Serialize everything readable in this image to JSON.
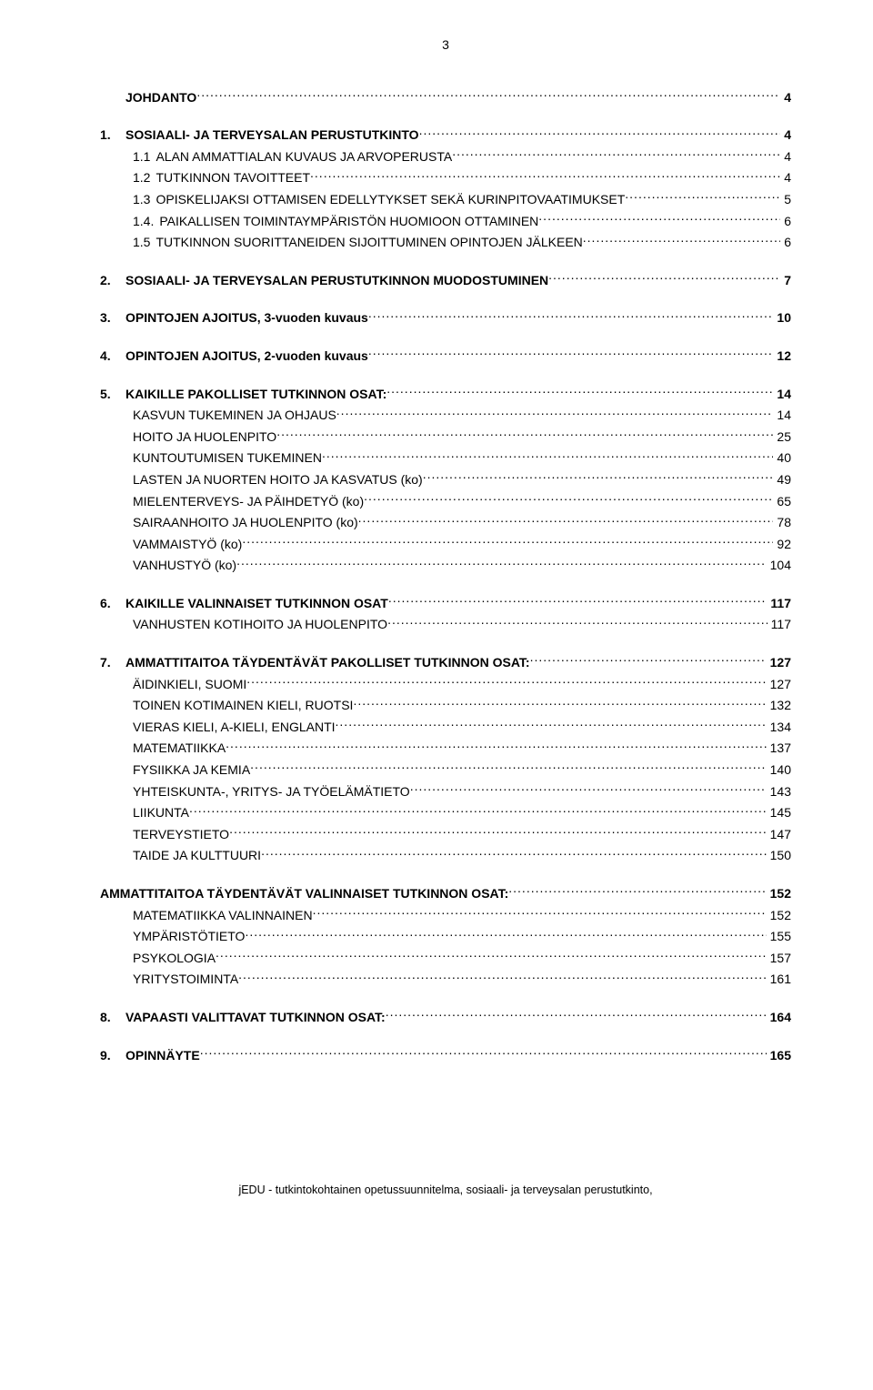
{
  "page_number": "3",
  "toc": [
    {
      "type": "top",
      "num": "",
      "label": "JOHDANTO",
      "page": "4",
      "bold": true,
      "group_after": true
    },
    {
      "type": "top",
      "num": "1.",
      "label": "SOSIAALI- JA TERVEYSALAN PERUSTUTKINTO",
      "page": "4",
      "bold": true
    },
    {
      "type": "sub",
      "num": "1.1",
      "label": "ALAN AMMATTIALAN KUVAUS JA ARVOPERUSTA",
      "page": "4"
    },
    {
      "type": "sub",
      "num": "1.2",
      "label": "TUTKINNON TAVOITTEET",
      "page": "4"
    },
    {
      "type": "sub",
      "num": "1.3",
      "label": "OPISKELIJAKSI OTTAMISEN EDELLYTYKSET SEKÄ KURINPITOVAATIMUKSET",
      "page": "5"
    },
    {
      "type": "sub",
      "num": "1.4.",
      "label": "PAIKALLISEN TOIMINTAYMPÄRISTÖN HUOMIOON OTTAMINEN",
      "page": "6"
    },
    {
      "type": "sub",
      "num": "1.5",
      "label": "TUTKINNON SUORITTANEIDEN SIJOITTUMINEN OPINTOJEN JÄLKEEN",
      "page": "6",
      "group_after": true
    },
    {
      "type": "top",
      "num": "2.",
      "label": "SOSIAALI- JA TERVEYSALAN PERUSTUTKINNON MUODOSTUMINEN",
      "page": "7",
      "bold": true,
      "group_after": true
    },
    {
      "type": "top",
      "num": "3.",
      "label": "OPINTOJEN AJOITUS, 3-vuoden kuvaus",
      "page": "10",
      "bold": true,
      "group_after": true
    },
    {
      "type": "top",
      "num": "4.",
      "label": "OPINTOJEN AJOITUS, 2-vuoden kuvaus",
      "page": "12",
      "bold": true,
      "group_after": true
    },
    {
      "type": "top",
      "num": "5.",
      "label": "KAIKILLE PAKOLLISET TUTKINNON OSAT:",
      "page": "14",
      "bold": true
    },
    {
      "type": "child",
      "label": "KASVUN TUKEMINEN JA OHJAUS",
      "page": "14"
    },
    {
      "type": "child",
      "label": "HOITO JA HUOLENPITO",
      "page": "25"
    },
    {
      "type": "child",
      "label": "KUNTOUTUMISEN TUKEMINEN",
      "page": "40"
    },
    {
      "type": "child",
      "label": "LASTEN JA NUORTEN HOITO JA KASVATUS (ko)",
      "page": "49"
    },
    {
      "type": "child",
      "label": "MIELENTERVEYS- JA PÄIHDETYÖ (ko)",
      "page": "65"
    },
    {
      "type": "child",
      "label": "SAIRAANHOITO JA HUOLENPITO (ko)",
      "page": "78"
    },
    {
      "type": "child",
      "label": "VAMMAISTYÖ (ko)",
      "page": "92"
    },
    {
      "type": "child",
      "label": "VANHUSTYÖ (ko)",
      "page": "104",
      "group_after": true
    },
    {
      "type": "top",
      "num": "6.",
      "label": "KAIKILLE VALINNAISET TUTKINNON OSAT",
      "page": "117",
      "bold": true
    },
    {
      "type": "child",
      "label": "VANHUSTEN KOTIHOITO JA HUOLENPITO",
      "page": "117",
      "group_after": true
    },
    {
      "type": "top",
      "num": "7.",
      "label": "AMMATTITAITOA TÄYDENTÄVÄT PAKOLLISET TUTKINNON OSAT:",
      "page": "127",
      "bold": true
    },
    {
      "type": "child",
      "label": "ÄIDINKIELI, SUOMI",
      "page": "127"
    },
    {
      "type": "child",
      "label": "TOINEN KOTIMAINEN KIELI, RUOTSI",
      "page": "132"
    },
    {
      "type": "child",
      "label": "VIERAS KIELI, A-KIELI, ENGLANTI",
      "page": "134"
    },
    {
      "type": "child",
      "label": "MATEMATIIKKA",
      "page": "137"
    },
    {
      "type": "child",
      "label": "FYSIIKKA JA KEMIA",
      "page": "140"
    },
    {
      "type": "child",
      "label": "YHTEISKUNTA-, YRITYS- JA TYÖELÄMÄTIETO",
      "page": "143"
    },
    {
      "type": "child",
      "label": "LIIKUNTA",
      "page": "145"
    },
    {
      "type": "child",
      "label": "TERVEYSTIETO",
      "page": "147"
    },
    {
      "type": "child",
      "label": "TAIDE JA KULTTUURI",
      "page": "150",
      "group_after": true
    },
    {
      "type": "flush",
      "label": "AMMATTITAITOA TÄYDENTÄVÄT VALINNAISET TUTKINNON OSAT:",
      "page": "152",
      "bold": true
    },
    {
      "type": "child",
      "label": "MATEMATIIKKA VALINNAINEN",
      "page": "152"
    },
    {
      "type": "child",
      "label": "YMPÄRISTÖTIETO",
      "page": "155"
    },
    {
      "type": "child",
      "label": "PSYKOLOGIA",
      "page": "157"
    },
    {
      "type": "child",
      "label": "YRITYSTOIMINTA",
      "page": "161",
      "group_after": true
    },
    {
      "type": "top",
      "num": "8.",
      "label": "VAPAASTI VALITTAVAT TUTKINNON OSAT:",
      "page": "164",
      "bold": true,
      "group_after": true
    },
    {
      "type": "top",
      "num": "9.",
      "label": "OPINNÄYTE",
      "page": "165",
      "bold": true
    }
  ],
  "footer": "jEDU - tutkintokohtainen opetussuunnitelma, sosiaali- ja terveysalan perustutkinto,"
}
